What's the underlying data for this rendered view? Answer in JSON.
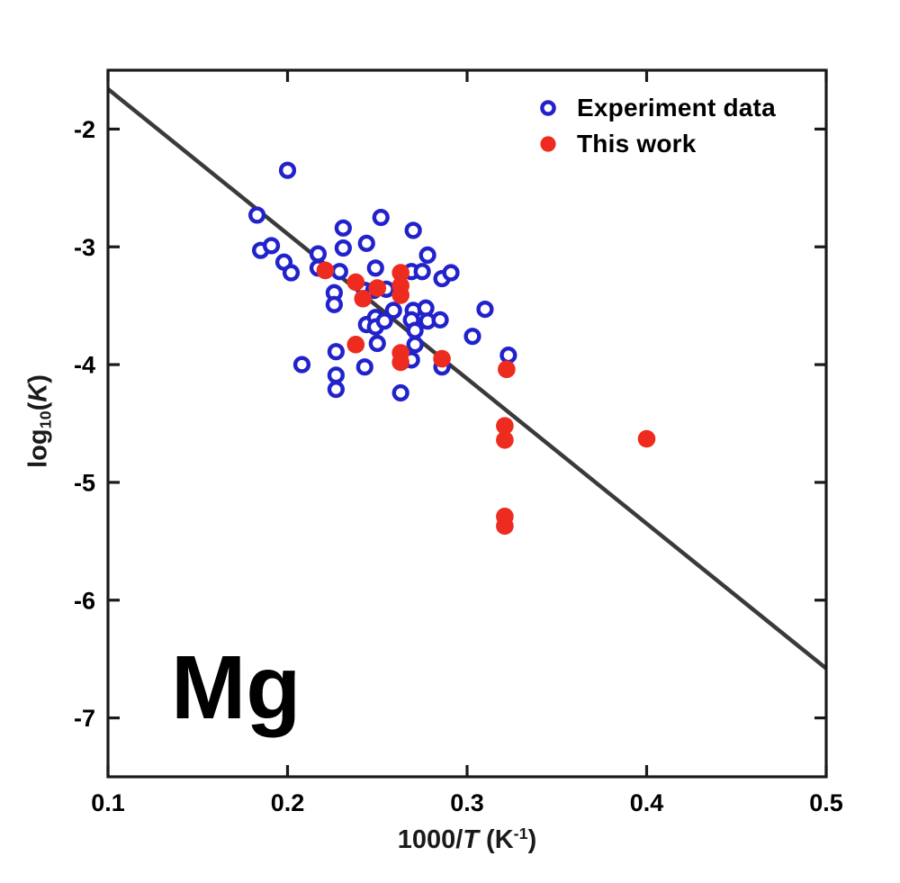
{
  "figure": {
    "background": "#ffffff",
    "element_label": "Mg",
    "legend": {
      "items": [
        {
          "label": "Experiment data",
          "marker": "open-circle",
          "color": "#2222cc"
        },
        {
          "label": "This work",
          "marker": "filled-circle",
          "color": "#ee2b1f"
        }
      ]
    }
  },
  "chart_data": {
    "type": "scatter",
    "title": "",
    "xlabel": "1000/T (K^-1)",
    "ylabel": "log10(K)",
    "xlabel_rich": [
      [
        "t",
        "1000/"
      ],
      [
        "it",
        "T"
      ],
      [
        "t",
        " (K"
      ],
      [
        "sp",
        "-1"
      ],
      [
        "t",
        ")"
      ]
    ],
    "ylabel_rich": [
      [
        "t",
        "log"
      ],
      [
        "sb",
        "10"
      ],
      [
        "t",
        "("
      ],
      [
        "it",
        "K"
      ],
      [
        "t",
        ")"
      ]
    ],
    "xlim": [
      0.1,
      0.5
    ],
    "ylim": [
      -7.5,
      -1.5
    ],
    "xticks": [
      0.1,
      0.2,
      0.3,
      0.4,
      0.5
    ],
    "xtick_labels": [
      "0.1",
      "0.2",
      "0.3",
      "0.4",
      "0.5"
    ],
    "yticks": [
      -7,
      -6,
      -5,
      -4,
      -3,
      -2
    ],
    "ytick_labels": [
      "-7",
      "-6",
      "-5",
      "-4",
      "-3",
      "-2"
    ],
    "grid": false,
    "legend_position": "top-right-inside",
    "axis_color": "#1a1a1a",
    "series": [
      {
        "name": "Experiment data",
        "marker": "open-circle",
        "color": "#2222cc",
        "points": [
          [
            0.2,
            -2.35
          ],
          [
            0.183,
            -2.73
          ],
          [
            0.185,
            -3.03
          ],
          [
            0.191,
            -2.99
          ],
          [
            0.198,
            -3.13
          ],
          [
            0.202,
            -3.22
          ],
          [
            0.217,
            -3.06
          ],
          [
            0.217,
            -3.18
          ],
          [
            0.231,
            -2.84
          ],
          [
            0.231,
            -3.01
          ],
          [
            0.244,
            -2.97
          ],
          [
            0.252,
            -2.75
          ],
          [
            0.27,
            -2.86
          ],
          [
            0.278,
            -3.07
          ],
          [
            0.249,
            -3.18
          ],
          [
            0.229,
            -3.21
          ],
          [
            0.269,
            -3.21
          ],
          [
            0.275,
            -3.21
          ],
          [
            0.286,
            -3.27
          ],
          [
            0.291,
            -3.22
          ],
          [
            0.255,
            -3.36
          ],
          [
            0.243,
            -3.37
          ],
          [
            0.248,
            -3.37
          ],
          [
            0.226,
            -3.39
          ],
          [
            0.226,
            -3.49
          ],
          [
            0.259,
            -3.54
          ],
          [
            0.27,
            -3.54
          ],
          [
            0.277,
            -3.52
          ],
          [
            0.31,
            -3.53
          ],
          [
            0.244,
            -3.66
          ],
          [
            0.249,
            -3.6
          ],
          [
            0.249,
            -3.68
          ],
          [
            0.254,
            -3.63
          ],
          [
            0.269,
            -3.62
          ],
          [
            0.278,
            -3.63
          ],
          [
            0.285,
            -3.62
          ],
          [
            0.271,
            -3.71
          ],
          [
            0.271,
            -3.83
          ],
          [
            0.25,
            -3.82
          ],
          [
            0.227,
            -3.89
          ],
          [
            0.208,
            -4.0
          ],
          [
            0.243,
            -4.02
          ],
          [
            0.227,
            -4.09
          ],
          [
            0.227,
            -4.21
          ],
          [
            0.303,
            -3.76
          ],
          [
            0.323,
            -3.92
          ],
          [
            0.269,
            -3.96
          ],
          [
            0.286,
            -4.02
          ],
          [
            0.263,
            -4.24
          ]
        ]
      },
      {
        "name": "This work",
        "marker": "filled-circle",
        "color": "#ee2b1f",
        "points": [
          [
            0.221,
            -3.2
          ],
          [
            0.238,
            -3.3
          ],
          [
            0.242,
            -3.44
          ],
          [
            0.25,
            -3.35
          ],
          [
            0.263,
            -3.22
          ],
          [
            0.263,
            -3.33
          ],
          [
            0.263,
            -3.41
          ],
          [
            0.238,
            -3.83
          ],
          [
            0.263,
            -3.9
          ],
          [
            0.263,
            -3.98
          ],
          [
            0.286,
            -3.95
          ],
          [
            0.322,
            -4.04
          ],
          [
            0.321,
            -4.52
          ],
          [
            0.321,
            -4.64
          ],
          [
            0.321,
            -5.29
          ],
          [
            0.321,
            -5.37
          ],
          [
            0.4,
            -4.63
          ]
        ]
      }
    ],
    "fit_line": {
      "color": "#3a3a3a",
      "x": [
        0.1,
        0.5
      ],
      "y": [
        -1.66,
        -6.58
      ]
    }
  }
}
